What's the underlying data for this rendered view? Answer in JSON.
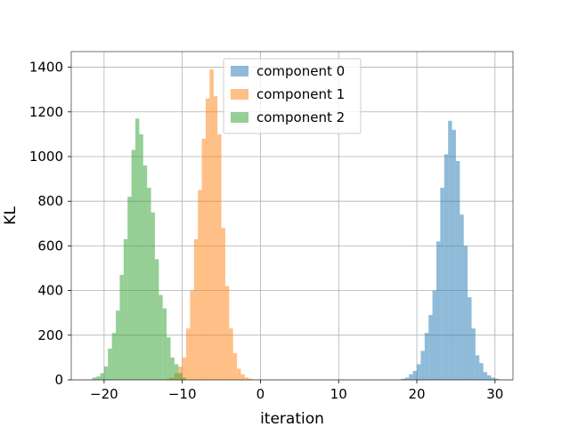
{
  "chart_data": {
    "type": "bar",
    "histogram": true,
    "xlabel": "iteration",
    "ylabel": "KL",
    "xlim": [
      -24.2,
      32.3
    ],
    "ylim": [
      0,
      1470
    ],
    "xticks": [
      -20,
      -10,
      0,
      10,
      20,
      30
    ],
    "yticks": [
      0,
      200,
      400,
      600,
      800,
      1000,
      1200,
      1400
    ],
    "grid": true,
    "legend_position": "upper-center",
    "bin_width": 0.5,
    "series": [
      {
        "name": "component 0",
        "color": "#1f77b4",
        "opacity": 0.5,
        "bins": [
          {
            "x0": 18.0,
            "y": 5
          },
          {
            "x0": 18.5,
            "y": 10
          },
          {
            "x0": 19.0,
            "y": 25
          },
          {
            "x0": 19.5,
            "y": 40
          },
          {
            "x0": 20.0,
            "y": 70
          },
          {
            "x0": 20.5,
            "y": 130
          },
          {
            "x0": 21.0,
            "y": 210
          },
          {
            "x0": 21.5,
            "y": 290
          },
          {
            "x0": 22.0,
            "y": 400
          },
          {
            "x0": 22.5,
            "y": 620
          },
          {
            "x0": 23.0,
            "y": 860
          },
          {
            "x0": 23.5,
            "y": 1010
          },
          {
            "x0": 24.0,
            "y": 1160
          },
          {
            "x0": 24.5,
            "y": 1120
          },
          {
            "x0": 25.0,
            "y": 980
          },
          {
            "x0": 25.5,
            "y": 740
          },
          {
            "x0": 26.0,
            "y": 600
          },
          {
            "x0": 26.5,
            "y": 370
          },
          {
            "x0": 27.0,
            "y": 230
          },
          {
            "x0": 27.5,
            "y": 110
          },
          {
            "x0": 28.0,
            "y": 75
          },
          {
            "x0": 28.5,
            "y": 35
          },
          {
            "x0": 29.0,
            "y": 20
          },
          {
            "x0": 29.5,
            "y": 10
          },
          {
            "x0": 30.0,
            "y": 5
          }
        ]
      },
      {
        "name": "component 1",
        "color": "#ff7f0e",
        "opacity": 0.5,
        "bins": [
          {
            "x0": -12.0,
            "y": 5
          },
          {
            "x0": -11.5,
            "y": 10
          },
          {
            "x0": -11.0,
            "y": 30
          },
          {
            "x0": -10.5,
            "y": 60
          },
          {
            "x0": -10.0,
            "y": 100
          },
          {
            "x0": -9.5,
            "y": 230
          },
          {
            "x0": -9.0,
            "y": 400
          },
          {
            "x0": -8.5,
            "y": 630
          },
          {
            "x0": -8.0,
            "y": 850
          },
          {
            "x0": -7.5,
            "y": 1080
          },
          {
            "x0": -7.0,
            "y": 1260
          },
          {
            "x0": -6.5,
            "y": 1390
          },
          {
            "x0": -6.0,
            "y": 1270
          },
          {
            "x0": -5.5,
            "y": 1100
          },
          {
            "x0": -5.0,
            "y": 680
          },
          {
            "x0": -4.5,
            "y": 420
          },
          {
            "x0": -4.0,
            "y": 230
          },
          {
            "x0": -3.5,
            "y": 120
          },
          {
            "x0": -3.0,
            "y": 50
          },
          {
            "x0": -2.5,
            "y": 25
          },
          {
            "x0": -2.0,
            "y": 10
          },
          {
            "x0": -1.5,
            "y": 5
          }
        ]
      },
      {
        "name": "component 2",
        "color": "#2ca02c",
        "opacity": 0.5,
        "bins": [
          {
            "x0": -21.5,
            "y": 10
          },
          {
            "x0": -21.0,
            "y": 15
          },
          {
            "x0": -20.5,
            "y": 30
          },
          {
            "x0": -20.0,
            "y": 60
          },
          {
            "x0": -19.5,
            "y": 140
          },
          {
            "x0": -19.0,
            "y": 210
          },
          {
            "x0": -18.5,
            "y": 310
          },
          {
            "x0": -18.0,
            "y": 470
          },
          {
            "x0": -17.5,
            "y": 630
          },
          {
            "x0": -17.0,
            "y": 820
          },
          {
            "x0": -16.5,
            "y": 1030
          },
          {
            "x0": -16.0,
            "y": 1170
          },
          {
            "x0": -15.5,
            "y": 1100
          },
          {
            "x0": -15.0,
            "y": 960
          },
          {
            "x0": -14.5,
            "y": 860
          },
          {
            "x0": -14.0,
            "y": 750
          },
          {
            "x0": -13.5,
            "y": 540
          },
          {
            "x0": -13.0,
            "y": 380
          },
          {
            "x0": -12.5,
            "y": 320
          },
          {
            "x0": -12.0,
            "y": 190
          },
          {
            "x0": -11.5,
            "y": 100
          },
          {
            "x0": -11.0,
            "y": 70
          },
          {
            "x0": -10.5,
            "y": 30
          },
          {
            "x0": -10.0,
            "y": 10
          }
        ]
      }
    ]
  }
}
